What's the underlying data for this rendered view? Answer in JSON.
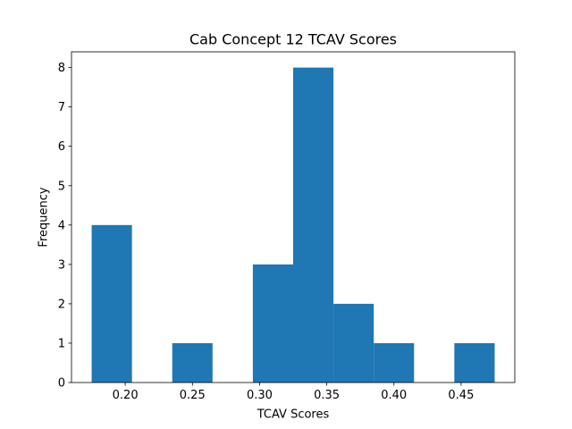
{
  "chart_data": {
    "type": "bar",
    "title": "Cab Concept 12 TCAV Scores",
    "xlabel": "TCAV Scores",
    "ylabel": "Frequency",
    "xlim": [
      0.16,
      0.49
    ],
    "ylim": [
      0,
      8.4
    ],
    "xticks": [
      {
        "value": 0.2,
        "label": "0.20"
      },
      {
        "value": 0.25,
        "label": "0.25"
      },
      {
        "value": 0.3,
        "label": "0.30"
      },
      {
        "value": 0.35,
        "label": "0.35"
      },
      {
        "value": 0.4,
        "label": "0.40"
      },
      {
        "value": 0.45,
        "label": "0.45"
      }
    ],
    "yticks": [
      {
        "value": 0,
        "label": "0"
      },
      {
        "value": 1,
        "label": "1"
      },
      {
        "value": 2,
        "label": "2"
      },
      {
        "value": 3,
        "label": "3"
      },
      {
        "value": 4,
        "label": "4"
      },
      {
        "value": 5,
        "label": "5"
      },
      {
        "value": 6,
        "label": "6"
      },
      {
        "value": 7,
        "label": "7"
      },
      {
        "value": 8,
        "label": "8"
      }
    ],
    "bin_edges": [
      0.175,
      0.205,
      0.235,
      0.265,
      0.295,
      0.325,
      0.355,
      0.385,
      0.415,
      0.445,
      0.475
    ],
    "values": [
      4,
      0,
      1,
      0,
      3,
      8,
      2,
      1,
      0,
      1
    ],
    "bar_color": "#1f77b4",
    "grid": false,
    "legend": "none"
  }
}
